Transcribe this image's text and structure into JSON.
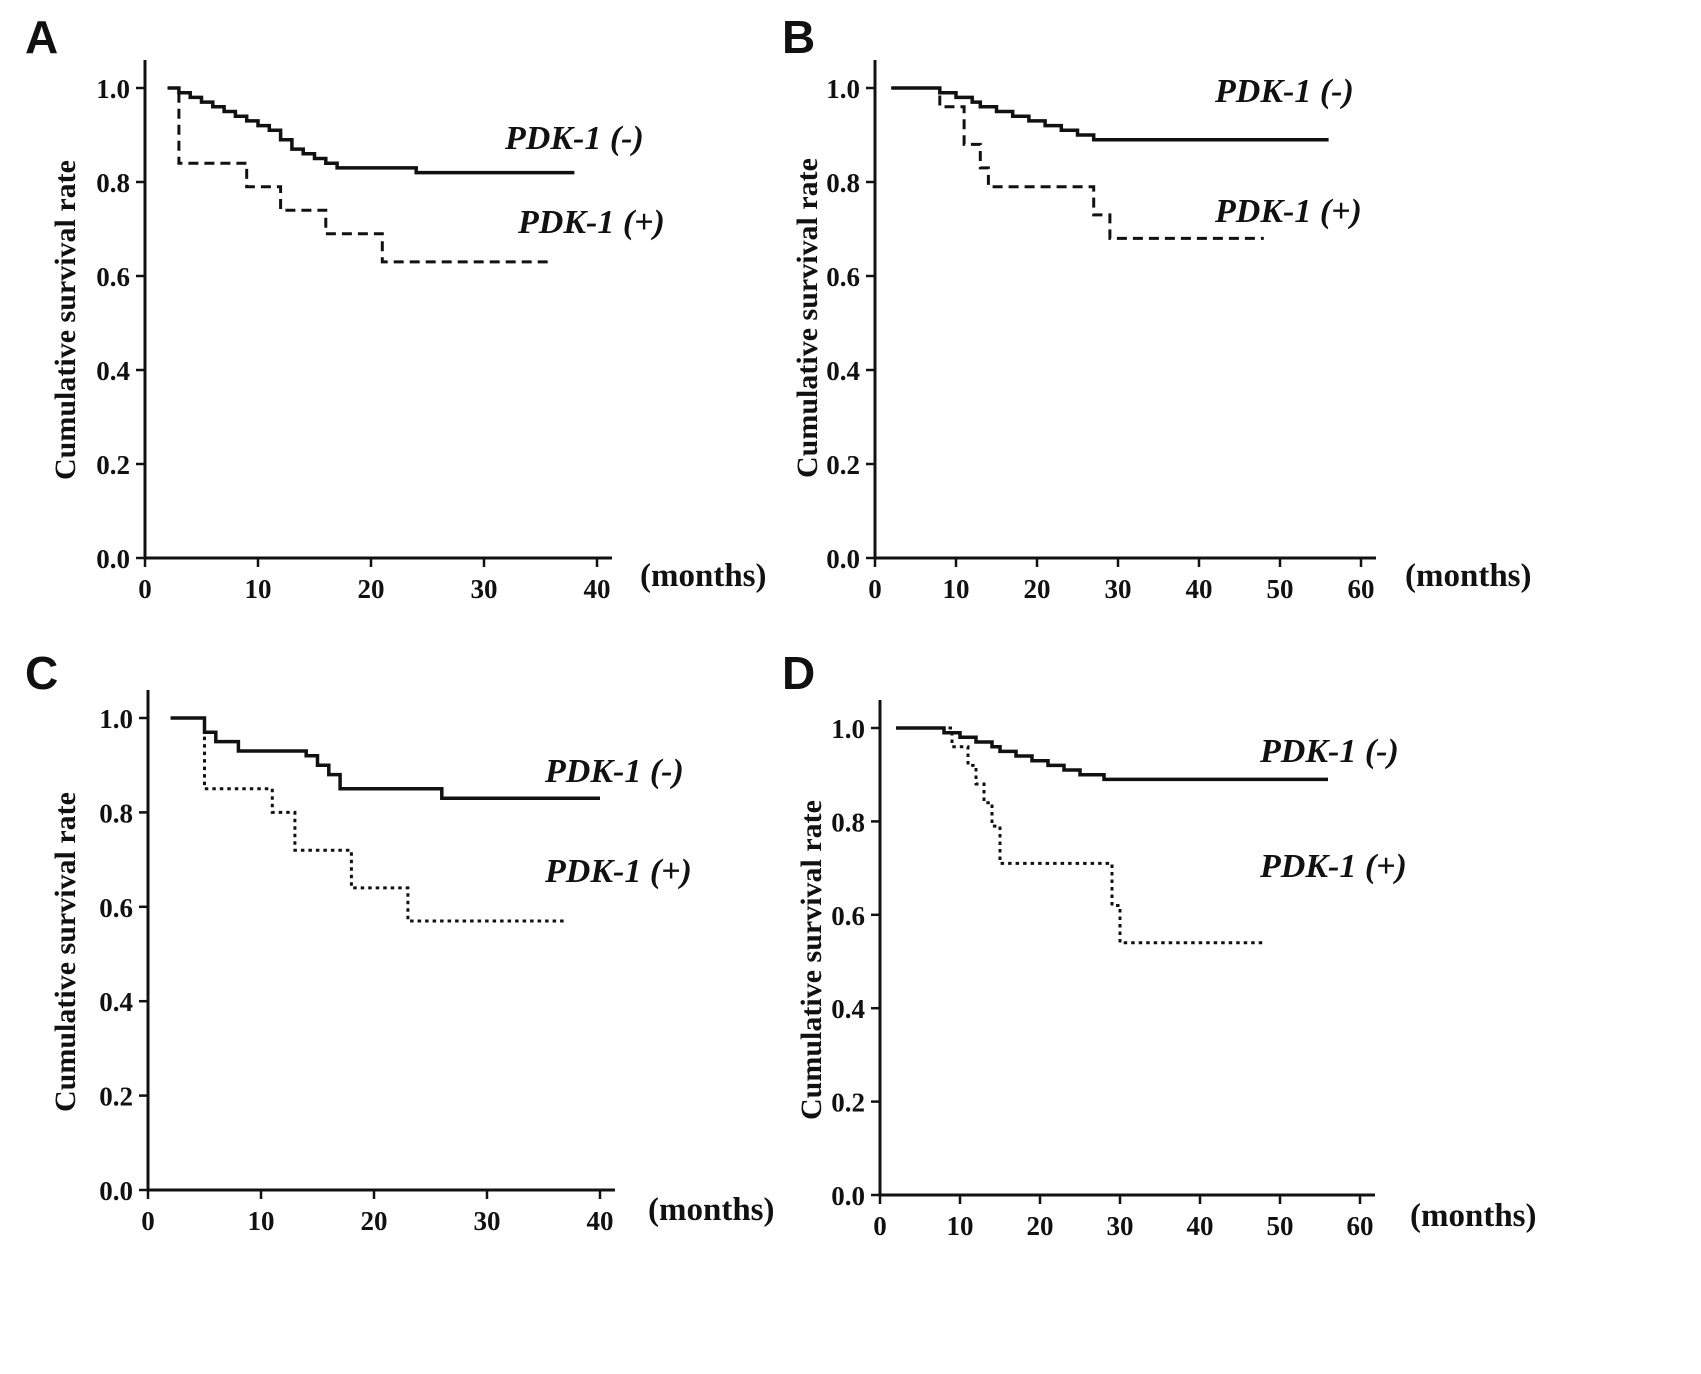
{
  "figure": {
    "y_axis_label": "Cumulative survival rate",
    "x_axis_unit": "(months)"
  },
  "chart_data": [
    {
      "panel": "A",
      "type": "line",
      "chart_style": "kaplan-meier-step",
      "xlabel": "(months)",
      "ylabel": "Cumulative survival rate",
      "xlim": [
        0,
        42
      ],
      "ylim": [
        0.0,
        1.05
      ],
      "grid": false,
      "legend_position": "labels-on-plot",
      "xticks": [
        0,
        10,
        20,
        30,
        40
      ],
      "yticks": [
        1.0,
        0.8,
        0.6,
        0.4,
        0.2,
        0.0
      ],
      "series": [
        {
          "name": "PDK-1 (-)",
          "style": "solid",
          "points": [
            [
              2,
              1.0
            ],
            [
              3,
              0.99
            ],
            [
              4,
              0.98
            ],
            [
              5,
              0.97
            ],
            [
              6,
              0.96
            ],
            [
              7,
              0.95
            ],
            [
              8,
              0.94
            ],
            [
              9,
              0.93
            ],
            [
              10,
              0.92
            ],
            [
              11,
              0.91
            ],
            [
              12,
              0.89
            ],
            [
              13,
              0.87
            ],
            [
              14,
              0.86
            ],
            [
              15,
              0.85
            ],
            [
              16,
              0.84
            ],
            [
              17,
              0.83
            ],
            [
              24,
              0.82
            ],
            [
              38,
              0.82
            ]
          ]
        },
        {
          "name": "PDK-1 (+)",
          "style": "dashed",
          "points": [
            [
              2,
              1.0
            ],
            [
              3,
              0.84
            ],
            [
              9,
              0.79
            ],
            [
              12,
              0.74
            ],
            [
              16,
              0.69
            ],
            [
              21,
              0.63
            ],
            [
              36,
              0.63
            ]
          ]
        }
      ]
    },
    {
      "panel": "B",
      "type": "line",
      "chart_style": "kaplan-meier-step",
      "xlabel": "(months)",
      "ylabel": "Cumulative survival rate",
      "xlim": [
        0,
        63
      ],
      "ylim": [
        0.0,
        1.05
      ],
      "grid": false,
      "legend_position": "labels-on-plot",
      "xticks": [
        0,
        10,
        20,
        30,
        40,
        50,
        60
      ],
      "yticks": [
        1.0,
        0.8,
        0.6,
        0.4,
        0.2,
        0.0
      ],
      "series": [
        {
          "name": "PDK-1 (-)",
          "style": "solid",
          "points": [
            [
              2,
              1.0
            ],
            [
              8,
              0.99
            ],
            [
              10,
              0.98
            ],
            [
              12,
              0.97
            ],
            [
              13,
              0.96
            ],
            [
              15,
              0.95
            ],
            [
              17,
              0.94
            ],
            [
              19,
              0.93
            ],
            [
              21,
              0.92
            ],
            [
              23,
              0.91
            ],
            [
              25,
              0.9
            ],
            [
              27,
              0.89
            ],
            [
              56,
              0.89
            ]
          ]
        },
        {
          "name": "PDK-1 (+)",
          "style": "dashed",
          "points": [
            [
              3,
              1.0
            ],
            [
              8,
              0.96
            ],
            [
              11,
              0.88
            ],
            [
              13,
              0.83
            ],
            [
              14,
              0.79
            ],
            [
              27,
              0.73
            ],
            [
              29,
              0.68
            ],
            [
              48,
              0.68
            ]
          ]
        }
      ]
    },
    {
      "panel": "C",
      "type": "line",
      "chart_style": "kaplan-meier-step",
      "xlabel": "(months)",
      "ylabel": "Cumulative survival rate",
      "xlim": [
        0,
        42
      ],
      "ylim": [
        0.0,
        1.05
      ],
      "grid": false,
      "legend_position": "labels-on-plot",
      "xticks": [
        0,
        10,
        20,
        30,
        40
      ],
      "yticks": [
        1.0,
        0.8,
        0.6,
        0.4,
        0.2,
        0.0
      ],
      "series": [
        {
          "name": "PDK-1 (-)",
          "style": "solid",
          "points": [
            [
              2,
              1.0
            ],
            [
              5,
              0.97
            ],
            [
              6,
              0.95
            ],
            [
              8,
              0.93
            ],
            [
              14,
              0.92
            ],
            [
              15,
              0.9
            ],
            [
              16,
              0.88
            ],
            [
              17,
              0.85
            ],
            [
              26,
              0.83
            ],
            [
              40,
              0.83
            ]
          ]
        },
        {
          "name": "PDK-1 (+)",
          "style": "dotted",
          "points": [
            [
              2,
              1.0
            ],
            [
              5,
              0.85
            ],
            [
              11,
              0.8
            ],
            [
              13,
              0.72
            ],
            [
              18,
              0.64
            ],
            [
              23,
              0.57
            ],
            [
              37,
              0.57
            ]
          ]
        }
      ]
    },
    {
      "panel": "D",
      "type": "line",
      "chart_style": "kaplan-meier-step",
      "xlabel": "(months)",
      "ylabel": "Cumulative survival rate",
      "xlim": [
        0,
        63
      ],
      "ylim": [
        0.0,
        1.05
      ],
      "grid": false,
      "legend_position": "labels-on-plot",
      "xticks": [
        0,
        10,
        20,
        30,
        40,
        50,
        60
      ],
      "yticks": [
        1.0,
        0.8,
        0.6,
        0.4,
        0.2,
        0.0
      ],
      "series": [
        {
          "name": "PDK-1 (-)",
          "style": "solid",
          "points": [
            [
              2,
              1.0
            ],
            [
              8,
              0.99
            ],
            [
              10,
              0.98
            ],
            [
              12,
              0.97
            ],
            [
              14,
              0.96
            ],
            [
              15,
              0.95
            ],
            [
              17,
              0.94
            ],
            [
              19,
              0.93
            ],
            [
              21,
              0.92
            ],
            [
              23,
              0.91
            ],
            [
              25,
              0.9
            ],
            [
              28,
              0.89
            ],
            [
              56,
              0.89
            ]
          ]
        },
        {
          "name": "PDK-1 (+)",
          "style": "dotted",
          "points": [
            [
              2,
              1.0
            ],
            [
              9,
              0.96
            ],
            [
              11,
              0.92
            ],
            [
              12,
              0.88
            ],
            [
              13,
              0.84
            ],
            [
              14,
              0.79
            ],
            [
              15,
              0.71
            ],
            [
              29,
              0.62
            ],
            [
              30,
              0.54
            ],
            [
              48,
              0.54
            ]
          ]
        }
      ]
    }
  ]
}
